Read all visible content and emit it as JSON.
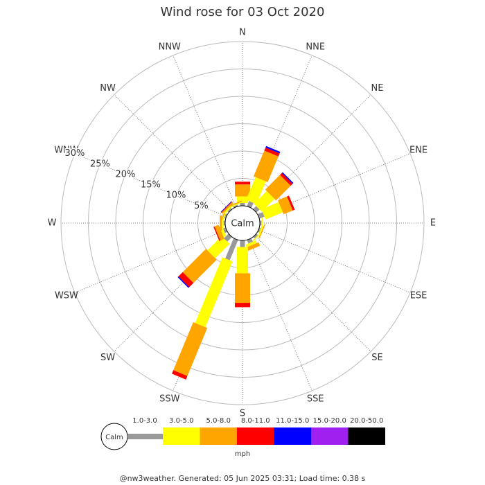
{
  "chart_data": {
    "type": "windrose",
    "title": "Wind rose for 03 Oct 2020",
    "categories": [
      "N",
      "NNE",
      "NE",
      "ENE",
      "E",
      "ESE",
      "SE",
      "SSE",
      "S",
      "SSW",
      "SW",
      "WSW",
      "W",
      "WNW",
      "NW",
      "NNW"
    ],
    "calm_label": "Calm",
    "units": "mph",
    "footer": "@nw3weather. Generated: 05 Jun 2025 03:31; Load time: 0.38 s",
    "rlim": [
      0,
      30
    ],
    "rticks": [
      {
        "value": 5,
        "label": "5%"
      },
      {
        "value": 10,
        "label": "10%"
      },
      {
        "value": 15,
        "label": "15%"
      },
      {
        "value": 20,
        "label": "20%"
      },
      {
        "value": 25,
        "label": "25%"
      },
      {
        "value": 30,
        "label": "30%"
      }
    ],
    "series": [
      {
        "name": "1.0-3.0",
        "color": "#999999",
        "values": [
          0.5,
          1,
          0.8,
          1,
          0.3,
          0.3,
          0.4,
          0.7,
          1.2,
          4,
          1.2,
          0.5,
          0.3,
          0.3,
          0.3,
          0.3
        ]
      },
      {
        "name": "3.0-5.0",
        "color": "#ffff00",
        "values": [
          1.2,
          4.5,
          3.3,
          3.4,
          0.2,
          0.3,
          0.2,
          0.5,
          4.8,
          13,
          3.7,
          0.5,
          0.3,
          0.2,
          0.3,
          0.2
        ]
      },
      {
        "name": "5.0-8.0",
        "color": "#ffa500",
        "values": [
          2.2,
          5.1,
          3.8,
          1.8,
          0,
          0.2,
          0,
          0.7,
          5.4,
          9.5,
          6,
          0.8,
          0.4,
          0.2,
          0.3,
          0.2
        ]
      },
      {
        "name": "8.0-11.0",
        "color": "#ff0000",
        "values": [
          0.5,
          0.6,
          0.5,
          0.4,
          0,
          0,
          0,
          0,
          0.8,
          0.7,
          1.1,
          0.2,
          0,
          0,
          0.1,
          0
        ]
      },
      {
        "name": "11.0-15.0",
        "color": "#0000ff",
        "values": [
          0,
          0.3,
          0.2,
          0,
          0,
          0,
          0,
          0,
          0,
          0,
          0.2,
          0,
          0,
          0,
          0.1,
          0
        ]
      },
      {
        "name": "15.0-20.0",
        "color": "#a020f0",
        "values": [
          0,
          0,
          0,
          0,
          0,
          0,
          0,
          0,
          0,
          0,
          0,
          0,
          0,
          0,
          0,
          0
        ]
      },
      {
        "name": "20.0-50.0",
        "color": "#000000",
        "values": [
          0,
          0,
          0,
          0,
          0,
          0,
          0,
          0,
          0,
          0,
          0,
          0,
          0,
          0,
          0,
          0
        ]
      }
    ]
  }
}
